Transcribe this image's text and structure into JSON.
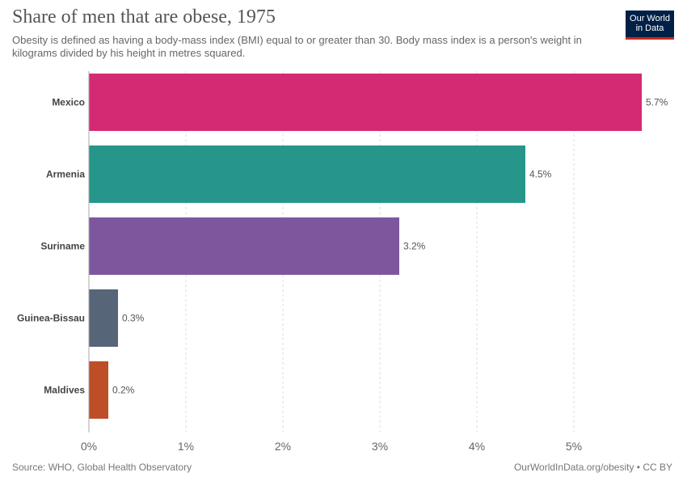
{
  "header": {
    "title": "Share of men that are obese, 1975",
    "subtitle": "Obesity is defined as having a body-mass index (BMI) equal to or greater than 30. Body mass index is a person's weight in kilograms divided by his height in metres squared."
  },
  "logo": {
    "line1": "Our World",
    "line2": "in Data",
    "bg_color": "#002147",
    "accent_color": "#ce261e"
  },
  "footer": {
    "source": "Source: WHO, Global Health Observatory",
    "url": "OurWorldInData.org/obesity • CC BY"
  },
  "chart_data": {
    "type": "bar",
    "orientation": "horizontal",
    "title": "Share of men that are obese, 1975",
    "categories": [
      "Mexico",
      "Armenia",
      "Suriname",
      "Guinea-Bissau",
      "Maldives"
    ],
    "values": [
      5.7,
      4.5,
      3.2,
      0.3,
      0.2
    ],
    "value_labels": [
      "5.7%",
      "4.5%",
      "3.2%",
      "0.3%",
      "0.2%"
    ],
    "colors": [
      "#d42a74",
      "#26968b",
      "#7d579e",
      "#576578",
      "#bd4e28"
    ],
    "xlim": [
      0,
      5.7
    ],
    "xticks": [
      0,
      1,
      2,
      3,
      4,
      5
    ],
    "xtick_labels": [
      "0%",
      "1%",
      "2%",
      "3%",
      "4%",
      "5%"
    ],
    "grid": true,
    "xlabel": "",
    "ylabel": ""
  }
}
